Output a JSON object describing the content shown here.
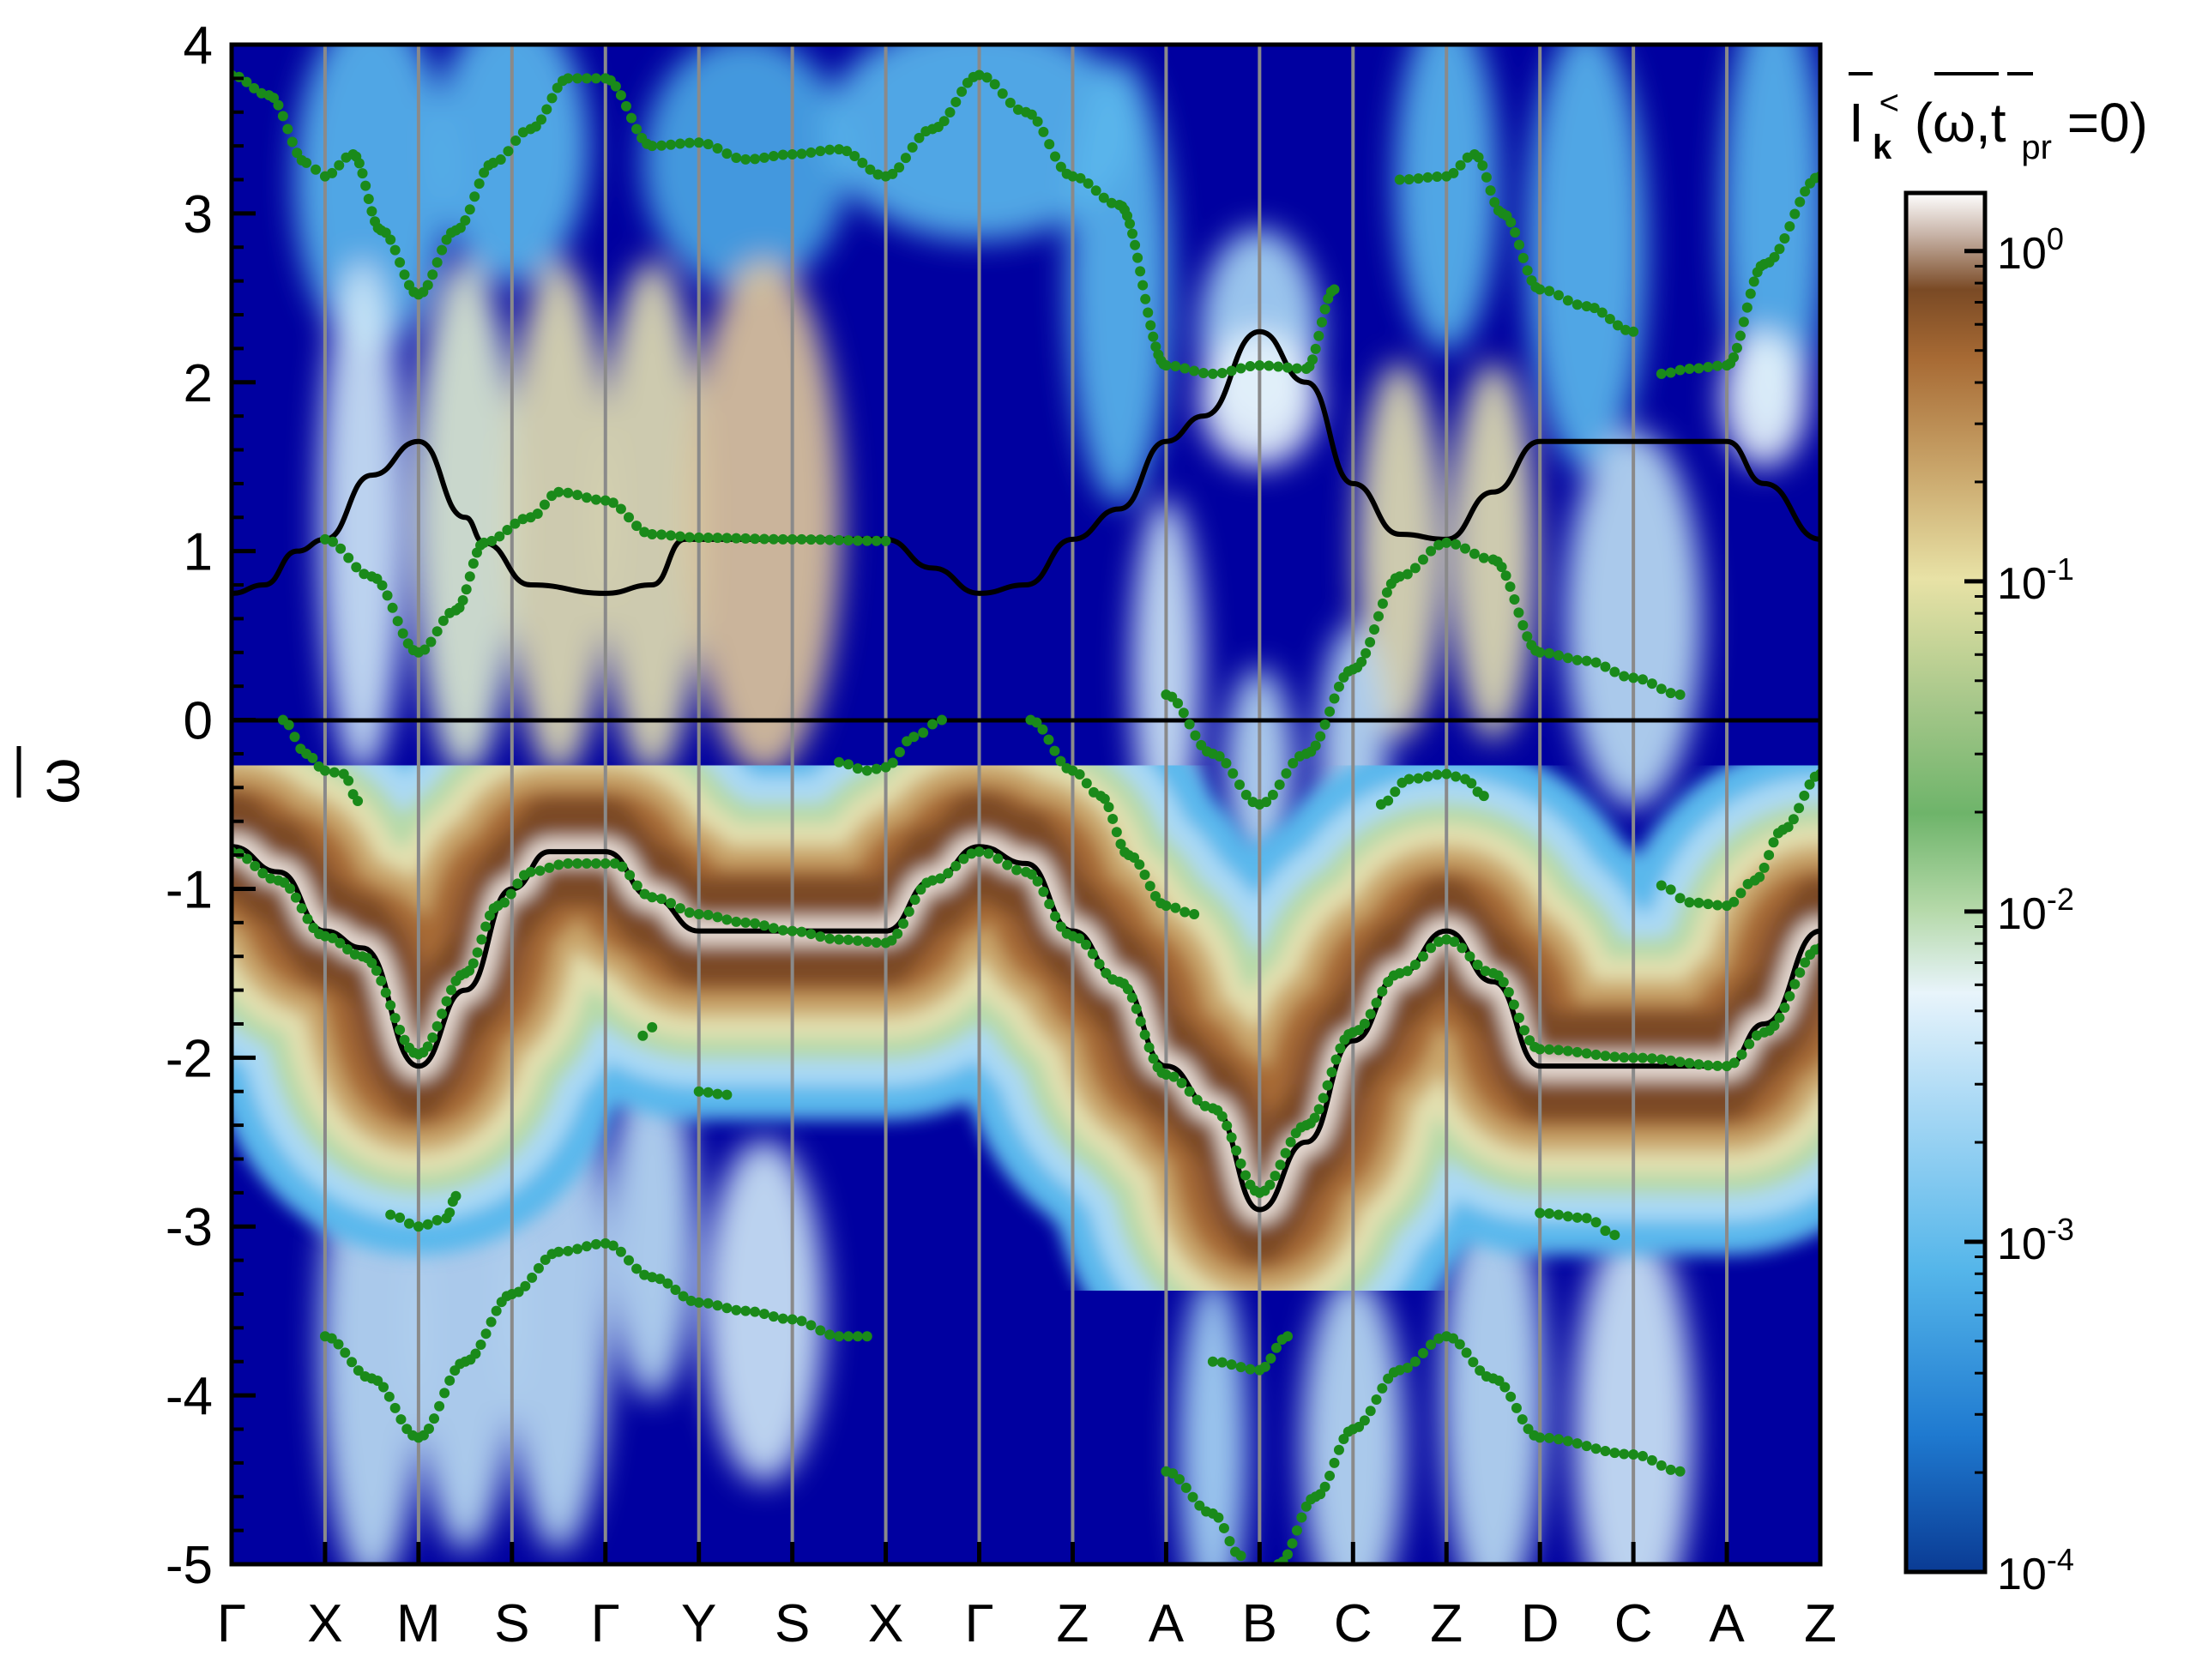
{
  "chart_data": {
    "type": "heatmap",
    "title": "",
    "xlabel": "",
    "ylabel": "ω",
    "ylim": [
      -5,
      4
    ],
    "yticks": [
      "4",
      "3",
      "2",
      "1",
      "0",
      "-1",
      "-2",
      "-3",
      "-4",
      "-5"
    ],
    "k_path": [
      "Γ",
      "X",
      "M",
      "S",
      "Γ",
      "Y",
      "S",
      "X",
      "Γ",
      "Z",
      "A",
      "B",
      "C",
      "Z",
      "D",
      "C",
      "A",
      "Z"
    ],
    "colorbar": {
      "title": "I",
      "title_sub": "k",
      "title_sup": "<",
      "title_args": "(ω,t",
      "title_args_sub": "pr",
      "title_args_end": "=0)",
      "scale": "log",
      "range": [
        0.0001,
        1.5
      ],
      "ticks": [
        {
          "base": "10",
          "exp": "0",
          "value": 1
        },
        {
          "base": "10",
          "exp": "-1",
          "value": 0.1
        },
        {
          "base": "10",
          "exp": "-2",
          "value": 0.01
        },
        {
          "base": "10",
          "exp": "-3",
          "value": 0.001
        },
        {
          "base": "10",
          "exp": "-4",
          "value": 0.0001
        }
      ]
    },
    "background_color": "#0000a0",
    "series": [
      {
        "color": "#000000",
        "style": "line",
        "points": [
          [
            0,
            0.75
          ],
          [
            0.35,
            0.8
          ],
          [
            0.7,
            1.0
          ],
          [
            1,
            1.07
          ],
          [
            1.5,
            1.45
          ],
          [
            2,
            1.65
          ],
          [
            2.5,
            1.2
          ],
          [
            2.7,
            1.05
          ],
          [
            3.2,
            0.8
          ],
          [
            4,
            0.75
          ],
          [
            4.5,
            0.8
          ],
          [
            4.85,
            1.07
          ],
          [
            5.5,
            1.07
          ],
          [
            7,
            1.07
          ],
          [
            7.5,
            0.9
          ],
          [
            8,
            0.75
          ],
          [
            8.5,
            0.8
          ],
          [
            9,
            1.07
          ],
          [
            9.5,
            1.25
          ],
          [
            10,
            1.65
          ],
          [
            10.4,
            1.8
          ],
          [
            11,
            2.3
          ],
          [
            11.5,
            2.0
          ],
          [
            12,
            1.4
          ],
          [
            12.5,
            1.1
          ],
          [
            13,
            1.07
          ],
          [
            13.5,
            1.35
          ],
          [
            14,
            1.65
          ],
          [
            16,
            1.65
          ],
          [
            16.4,
            1.4
          ],
          [
            17,
            1.07
          ]
        ]
      },
      {
        "color": "#000000",
        "style": "line",
        "points": [
          [
            0,
            -0.75
          ],
          [
            0.5,
            -0.9
          ],
          [
            1,
            -1.25
          ],
          [
            1.4,
            -1.35
          ],
          [
            2,
            -2.05
          ],
          [
            2.5,
            -1.6
          ],
          [
            3,
            -1.0
          ],
          [
            3.4,
            -0.78
          ],
          [
            4,
            -0.78
          ],
          [
            4.5,
            -1.05
          ],
          [
            5,
            -1.25
          ],
          [
            7,
            -1.25
          ],
          [
            7.5,
            -0.95
          ],
          [
            8,
            -0.75
          ],
          [
            8.5,
            -0.85
          ],
          [
            9,
            -1.25
          ],
          [
            9.5,
            -1.55
          ],
          [
            10,
            -2.05
          ],
          [
            10.5,
            -2.3
          ],
          [
            11,
            -2.9
          ],
          [
            11.5,
            -2.5
          ],
          [
            12,
            -1.9
          ],
          [
            12.5,
            -1.5
          ],
          [
            13,
            -1.25
          ],
          [
            13.5,
            -1.55
          ],
          [
            14,
            -2.05
          ],
          [
            16,
            -2.05
          ],
          [
            16.4,
            -1.8
          ],
          [
            17,
            -1.25
          ]
        ]
      },
      {
        "color": "#1a8a1a",
        "style": "dots",
        "points": [
          [
            0,
            3.82
          ],
          [
            0.4,
            3.7
          ],
          [
            0.8,
            3.3
          ],
          [
            1,
            3.22
          ],
          [
            1.3,
            3.35
          ],
          [
            1.6,
            2.9
          ],
          [
            2,
            2.52
          ],
          [
            2.4,
            2.9
          ],
          [
            2.8,
            3.3
          ],
          [
            3.2,
            3.5
          ],
          [
            3.6,
            3.8
          ],
          [
            4,
            3.8
          ],
          [
            4.5,
            3.4
          ],
          [
            5,
            3.42
          ],
          [
            5.5,
            3.32
          ],
          [
            6,
            3.35
          ],
          [
            6.5,
            3.38
          ],
          [
            7,
            3.22
          ],
          [
            7.5,
            3.5
          ],
          [
            8,
            3.82
          ],
          [
            8.5,
            3.6
          ],
          [
            9,
            3.22
          ],
          [
            9.5,
            3.05
          ],
          [
            10,
            2.1
          ],
          [
            10.5,
            2.05
          ],
          [
            11,
            2.1
          ],
          [
            11.5,
            2.08
          ],
          [
            11.8,
            2.55
          ]
        ]
      },
      {
        "color": "#1a8a1a",
        "style": "dots",
        "points": [
          [
            12.5,
            3.2
          ],
          [
            13,
            3.22
          ],
          [
            13.3,
            3.35
          ],
          [
            13.6,
            3.0
          ],
          [
            14,
            2.55
          ],
          [
            14.5,
            2.45
          ],
          [
            15,
            2.3
          ]
        ]
      },
      {
        "color": "#1a8a1a",
        "style": "dots",
        "points": [
          [
            15.3,
            2.05
          ],
          [
            15.6,
            2.08
          ],
          [
            16,
            2.1
          ],
          [
            16.4,
            2.7
          ],
          [
            17,
            3.22
          ]
        ]
      },
      {
        "color": "#1a8a1a",
        "style": "dots",
        "points": [
          [
            1,
            1.07
          ],
          [
            1.5,
            0.85
          ],
          [
            2,
            0.4
          ],
          [
            2.4,
            0.65
          ],
          [
            2.7,
            1.05
          ],
          [
            3.2,
            1.2
          ],
          [
            3.5,
            1.35
          ],
          [
            4,
            1.3
          ],
          [
            4.5,
            1.1
          ],
          [
            5,
            1.08
          ],
          [
            6,
            1.07
          ],
          [
            7,
            1.06
          ]
        ]
      },
      {
        "color": "#1a8a1a",
        "style": "dots",
        "points": [
          [
            10,
            0.15
          ],
          [
            10.5,
            -0.2
          ],
          [
            11,
            -0.5
          ],
          [
            11.5,
            -0.2
          ],
          [
            12,
            0.3
          ],
          [
            12.5,
            0.85
          ],
          [
            13,
            1.05
          ],
          [
            13.5,
            0.95
          ],
          [
            14,
            0.4
          ],
          [
            14.5,
            0.35
          ],
          [
            15,
            0.25
          ],
          [
            15.5,
            0.15
          ]
        ]
      },
      {
        "color": "#1a8a1a",
        "style": "dots",
        "points": [
          [
            0.55,
            0.0
          ],
          [
            0.8,
            -0.2
          ],
          [
            1,
            -0.3
          ],
          [
            1.2,
            -0.32
          ],
          [
            1.35,
            -0.48
          ]
        ]
      },
      {
        "color": "#1a8a1a",
        "style": "dots",
        "points": [
          [
            6.5,
            -0.25
          ],
          [
            6.8,
            -0.3
          ],
          [
            7,
            -0.28
          ],
          [
            7.3,
            -0.1
          ],
          [
            7.6,
            0.0
          ]
        ]
      },
      {
        "color": "#1a8a1a",
        "style": "dots",
        "points": [
          [
            8.55,
            0.0
          ],
          [
            9,
            -0.3
          ],
          [
            9.3,
            -0.45
          ],
          [
            9.6,
            -0.8
          ],
          [
            10,
            -1.1
          ],
          [
            10.3,
            -1.15
          ]
        ]
      },
      {
        "color": "#1a8a1a",
        "style": "dots",
        "points": [
          [
            12.3,
            -0.5
          ],
          [
            12.6,
            -0.35
          ],
          [
            13,
            -0.32
          ],
          [
            13.2,
            -0.35
          ],
          [
            13.4,
            -0.45
          ]
        ]
      },
      {
        "color": "#1a8a1a",
        "style": "dots",
        "points": [
          [
            15.3,
            -0.98
          ],
          [
            15.6,
            -1.08
          ],
          [
            16,
            -1.1
          ],
          [
            16.3,
            -0.95
          ],
          [
            16.6,
            -0.65
          ],
          [
            17,
            -0.32
          ]
        ]
      },
      {
        "color": "#1a8a1a",
        "style": "dots",
        "points": [
          [
            0,
            -0.78
          ],
          [
            0.5,
            -0.95
          ],
          [
            1,
            -1.28
          ],
          [
            1.4,
            -1.4
          ],
          [
            2,
            -1.98
          ],
          [
            2.5,
            -1.5
          ],
          [
            2.85,
            -1.1
          ],
          [
            3.2,
            -0.9
          ],
          [
            3.6,
            -0.85
          ],
          [
            4.1,
            -0.85
          ],
          [
            4.5,
            -1.05
          ],
          [
            5,
            -1.15
          ],
          [
            5.5,
            -1.2
          ],
          [
            6,
            -1.25
          ],
          [
            6.5,
            -1.3
          ],
          [
            7,
            -1.32
          ],
          [
            7.5,
            -0.95
          ],
          [
            8,
            -0.78
          ],
          [
            8.5,
            -0.9
          ],
          [
            9,
            -1.28
          ],
          [
            9.5,
            -1.55
          ],
          [
            10,
            -2.1
          ],
          [
            10.5,
            -2.3
          ],
          [
            11,
            -2.8
          ],
          [
            11.5,
            -2.4
          ],
          [
            12,
            -1.85
          ],
          [
            12.5,
            -1.5
          ],
          [
            13,
            -1.3
          ],
          [
            13.5,
            -1.5
          ],
          [
            14,
            -1.95
          ],
          [
            15,
            -2.0
          ],
          [
            16,
            -2.05
          ],
          [
            16.4,
            -1.85
          ],
          [
            17,
            -1.35
          ]
        ]
      },
      {
        "color": "#1a8a1a",
        "style": "dots",
        "points": [
          [
            4.4,
            -1.87
          ],
          [
            4.5,
            -1.82
          ]
        ]
      },
      {
        "color": "#1a8a1a",
        "style": "dots",
        "points": [
          [
            5.0,
            -2.2
          ],
          [
            5.3,
            -2.22
          ]
        ]
      },
      {
        "color": "#1a8a1a",
        "style": "dots",
        "points": [
          [
            1.7,
            -2.93
          ],
          [
            2,
            -3.0
          ],
          [
            2.3,
            -2.95
          ],
          [
            2.4,
            -2.82
          ]
        ]
      },
      {
        "color": "#1a8a1a",
        "style": "dots",
        "points": [
          [
            14.0,
            -2.92
          ],
          [
            14.5,
            -2.95
          ],
          [
            14.8,
            -3.05
          ]
        ]
      },
      {
        "color": "#1a8a1a",
        "style": "dots",
        "points": [
          [
            10.5,
            -3.8
          ],
          [
            11,
            -3.85
          ],
          [
            11.3,
            -3.65
          ]
        ]
      },
      {
        "color": "#1a8a1a",
        "style": "dots",
        "points": [
          [
            1,
            -3.65
          ],
          [
            1.5,
            -3.9
          ],
          [
            2,
            -4.25
          ],
          [
            2.5,
            -3.8
          ],
          [
            3,
            -3.4
          ],
          [
            3.5,
            -3.15
          ],
          [
            4,
            -3.1
          ],
          [
            4.5,
            -3.3
          ],
          [
            5,
            -3.45
          ],
          [
            5.5,
            -3.5
          ],
          [
            6,
            -3.55
          ],
          [
            6.5,
            -3.65
          ],
          [
            6.8,
            -3.65
          ]
        ]
      },
      {
        "color": "#1a8a1a",
        "style": "dots",
        "points": [
          [
            11.2,
            -5.0
          ],
          [
            11.6,
            -4.6
          ],
          [
            12,
            -4.2
          ],
          [
            12.5,
            -3.85
          ],
          [
            13,
            -3.65
          ],
          [
            13.5,
            -3.9
          ],
          [
            14,
            -4.25
          ],
          [
            15,
            -4.35
          ],
          [
            15.5,
            -4.45
          ]
        ]
      },
      {
        "color": "#1a8a1a",
        "style": "dots",
        "points": [
          [
            10,
            -4.45
          ],
          [
            10.5,
            -4.7
          ],
          [
            10.8,
            -4.95
          ]
        ]
      }
    ],
    "intensity_bands": [
      {
        "center": "black_line_1",
        "level": 0.3,
        "width": 0.45
      },
      {
        "center": "valence",
        "level": 1.0,
        "width": 0.4
      }
    ]
  }
}
